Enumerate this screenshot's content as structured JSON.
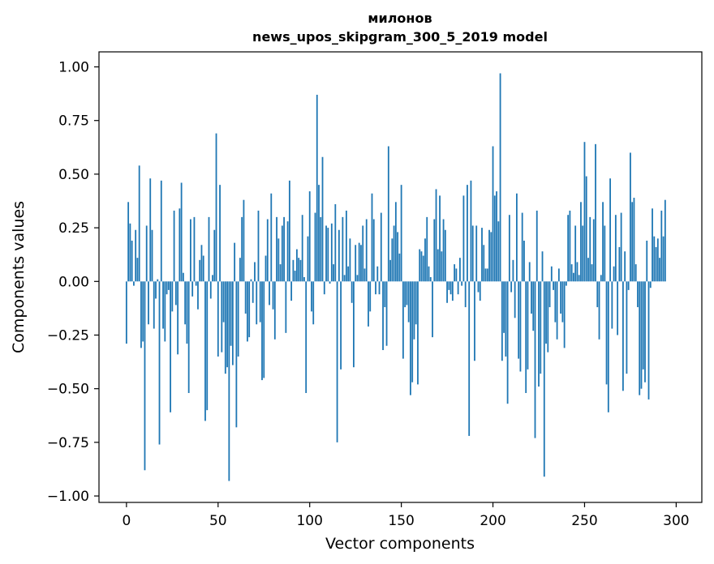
{
  "chart_data": {
    "type": "bar",
    "title_line1": "милонов",
    "title_line2": "news_upos_skipgram_300_5_2019 model",
    "xlabel": "Vector components",
    "ylabel": "Components values",
    "xlim": [
      -15,
      314
    ],
    "ylim": [
      -1.03,
      1.07
    ],
    "xticks": [
      0,
      50,
      100,
      150,
      200,
      250,
      300
    ],
    "xtick_labels": [
      "0",
      "50",
      "100",
      "150",
      "200",
      "250",
      "300"
    ],
    "yticks": [
      1.0,
      0.75,
      0.5,
      0.25,
      0.0,
      -0.25,
      -0.5,
      -0.75,
      -1.0
    ],
    "ytick_labels": [
      "1.00",
      "0.75",
      "0.50",
      "0.25",
      "0.00",
      "−0.25",
      "−0.50",
      "−0.75",
      "−1.00"
    ],
    "bar_color": "#1f77b4",
    "values": [
      -0.29,
      0.37,
      0.27,
      0.19,
      -0.02,
      0.24,
      0.11,
      0.54,
      -0.31,
      -0.28,
      -0.88,
      0.26,
      -0.2,
      0.48,
      0.24,
      -0.22,
      -0.08,
      0.01,
      -0.76,
      0.47,
      -0.22,
      -0.28,
      -0.06,
      -0.04,
      -0.61,
      -0.14,
      0.33,
      -0.11,
      -0.34,
      0.34,
      0.46,
      0.04,
      -0.2,
      -0.29,
      -0.52,
      0.29,
      -0.07,
      0.3,
      -0.02,
      -0.13,
      0.1,
      0.17,
      0.12,
      -0.65,
      -0.6,
      0.3,
      -0.08,
      0.03,
      0.24,
      0.69,
      -0.35,
      0.45,
      -0.33,
      -0.19,
      -0.43,
      -0.4,
      -0.93,
      -0.3,
      -0.39,
      0.18,
      -0.68,
      -0.35,
      0.11,
      0.3,
      0.38,
      -0.15,
      -0.28,
      -0.26,
      0.01,
      -0.1,
      0.09,
      -0.2,
      0.33,
      -0.19,
      -0.46,
      -0.45,
      0.12,
      0.29,
      -0.11,
      0.41,
      -0.13,
      -0.27,
      0.3,
      0.2,
      0.08,
      0.26,
      0.3,
      -0.24,
      0.28,
      0.47,
      -0.09,
      0.1,
      0.05,
      0.15,
      0.11,
      0.1,
      0.31,
      0.02,
      -0.52,
      0.21,
      0.42,
      -0.14,
      -0.2,
      0.32,
      0.87,
      0.45,
      0.3,
      0.58,
      -0.06,
      0.26,
      0.25,
      -0.01,
      0.27,
      0.08,
      0.36,
      -0.75,
      0.24,
      -0.41,
      0.3,
      0.03,
      0.33,
      0.07,
      0.2,
      -0.1,
      -0.4,
      0.17,
      0.03,
      0.18,
      0.17,
      0.26,
      0.06,
      0.29,
      -0.21,
      -0.14,
      0.41,
      0.29,
      -0.06,
      0.07,
      -0.06,
      0.32,
      -0.32,
      -0.12,
      -0.3,
      0.63,
      0.1,
      0.2,
      0.26,
      0.37,
      0.23,
      0.13,
      0.45,
      -0.36,
      -0.12,
      -0.11,
      -0.19,
      -0.53,
      -0.47,
      -0.27,
      -0.2,
      -0.48,
      0.15,
      0.14,
      0.12,
      0.2,
      0.3,
      0.07,
      0.02,
      -0.26,
      0.29,
      0.43,
      0.15,
      0.4,
      0.14,
      0.29,
      0.24,
      -0.1,
      -0.04,
      -0.06,
      -0.09,
      0.08,
      0.06,
      -0.06,
      0.11,
      -0.02,
      0.4,
      -0.12,
      0.45,
      -0.72,
      0.47,
      0.26,
      -0.37,
      0.26,
      -0.05,
      -0.09,
      0.25,
      0.17,
      0.06,
      0.06,
      0.24,
      0.23,
      0.63,
      0.4,
      0.42,
      0.28,
      0.97,
      -0.37,
      -0.24,
      -0.35,
      -0.57,
      0.31,
      -0.05,
      0.1,
      -0.17,
      0.41,
      -0.36,
      -0.42,
      0.32,
      0.19,
      -0.52,
      -0.41,
      0.09,
      -0.15,
      -0.23,
      -0.73,
      0.33,
      -0.49,
      -0.43,
      0.14,
      -0.91,
      -0.29,
      -0.33,
      -0.12,
      0.07,
      -0.04,
      -0.19,
      -0.27,
      0.06,
      -0.15,
      -0.19,
      -0.31,
      -0.02,
      0.31,
      0.33,
      0.08,
      0.04,
      0.26,
      0.09,
      0.03,
      0.37,
      0.26,
      0.65,
      0.49,
      0.11,
      0.3,
      0.08,
      0.29,
      0.64,
      -0.12,
      -0.27,
      0.03,
      0.37,
      0.26,
      -0.48,
      -0.61,
      0.48,
      -0.22,
      0.07,
      0.31,
      -0.25,
      0.16,
      0.32,
      -0.51,
      0.14,
      -0.43,
      -0.04,
      0.6,
      0.37,
      0.39,
      0.08,
      -0.12,
      -0.53,
      -0.5,
      -0.41,
      -0.47,
      0.19,
      -0.55,
      -0.03,
      0.34,
      0.21,
      0.16,
      0.2,
      0.11,
      0.33,
      0.21,
      0.38
    ]
  }
}
